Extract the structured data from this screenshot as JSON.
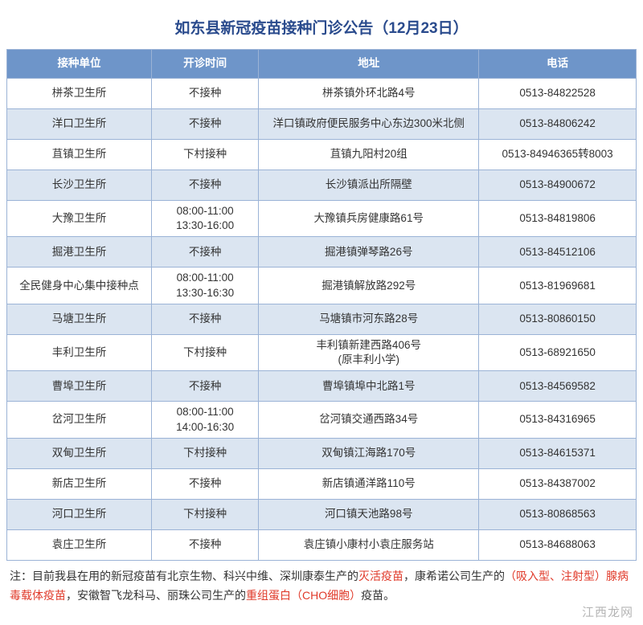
{
  "title": "如东县新冠疫苗接种门诊公告（12月23日）",
  "columns": [
    "接种单位",
    "开诊时间",
    "地址",
    "电话"
  ],
  "col_widths": [
    "23%",
    "17%",
    "35%",
    "25%"
  ],
  "header_bg": "#6e95c9",
  "header_fg": "#ffffff",
  "row_odd_bg": "#ffffff",
  "row_even_bg": "#dbe5f1",
  "border_color": "#9bb3d6",
  "title_color": "#2a4b8d",
  "note_red_color": "#e03a2a",
  "rows": [
    {
      "unit": "栟茶卫生所",
      "time": "不接种",
      "addr": "栟茶镇外环北路4号",
      "tel": "0513-84822528"
    },
    {
      "unit": "洋口卫生所",
      "time": "不接种",
      "addr": "洋口镇政府便民服务中心东边300米北侧",
      "tel": "0513-84806242"
    },
    {
      "unit": "苴镇卫生所",
      "time": "下村接种",
      "addr": "苴镇九阳村20组",
      "tel": "0513-84946365转8003"
    },
    {
      "unit": "长沙卫生所",
      "time": "不接种",
      "addr": "长沙镇派出所隔壁",
      "tel": "0513-84900672"
    },
    {
      "unit": "大豫卫生所",
      "time": "08:00-11:00\n13:30-16:00",
      "addr": "大豫镇兵房健康路61号",
      "tel": "0513-84819806"
    },
    {
      "unit": "掘港卫生所",
      "time": "不接种",
      "addr": "掘港镇弹琴路26号",
      "tel": "0513-84512106"
    },
    {
      "unit": "全民健身中心集中接种点",
      "time": "08:00-11:00\n13:30-16:30",
      "addr": "掘港镇解放路292号",
      "tel": "0513-81969681"
    },
    {
      "unit": "马塘卫生所",
      "time": "不接种",
      "addr": "马塘镇市河东路28号",
      "tel": "0513-80860150"
    },
    {
      "unit": "丰利卫生所",
      "time": "下村接种",
      "addr": "丰利镇新建西路406号\n(原丰利小学)",
      "tel": "0513-68921650"
    },
    {
      "unit": "曹埠卫生所",
      "time": "不接种",
      "addr": "曹埠镇埠中北路1号",
      "tel": "0513-84569582"
    },
    {
      "unit": "岔河卫生所",
      "time": "08:00-11:00\n14:00-16:30",
      "addr": "岔河镇交通西路34号",
      "tel": "0513-84316965"
    },
    {
      "unit": "双甸卫生所",
      "time": "下村接种",
      "addr": "双甸镇江海路170号",
      "tel": "0513-84615371"
    },
    {
      "unit": "新店卫生所",
      "time": "不接种",
      "addr": "新店镇通洋路110号",
      "tel": "0513-84387002"
    },
    {
      "unit": "河口卫生所",
      "time": "下村接种",
      "addr": "河口镇天池路98号",
      "tel": "0513-80868563"
    },
    {
      "unit": "袁庄卫生所",
      "time": "不接种",
      "addr": "袁庄镇小康村小袁庄服务站",
      "tel": "0513-84688063"
    }
  ],
  "note": {
    "prefix": "注：目前我县在用的新冠疫苗有北京生物、科兴中维、深圳康泰生产的",
    "red1": "灭活疫苗",
    "mid1": "，康希诺公司生产的",
    "red2": "（吸入型、注射型）腺病毒载体疫苗",
    "mid2": "，安徽智飞龙科马、丽珠公司生产的",
    "red3": "重组蛋白（CHO细胞）",
    "suffix": "疫苗。"
  },
  "watermark": "江西龙网"
}
